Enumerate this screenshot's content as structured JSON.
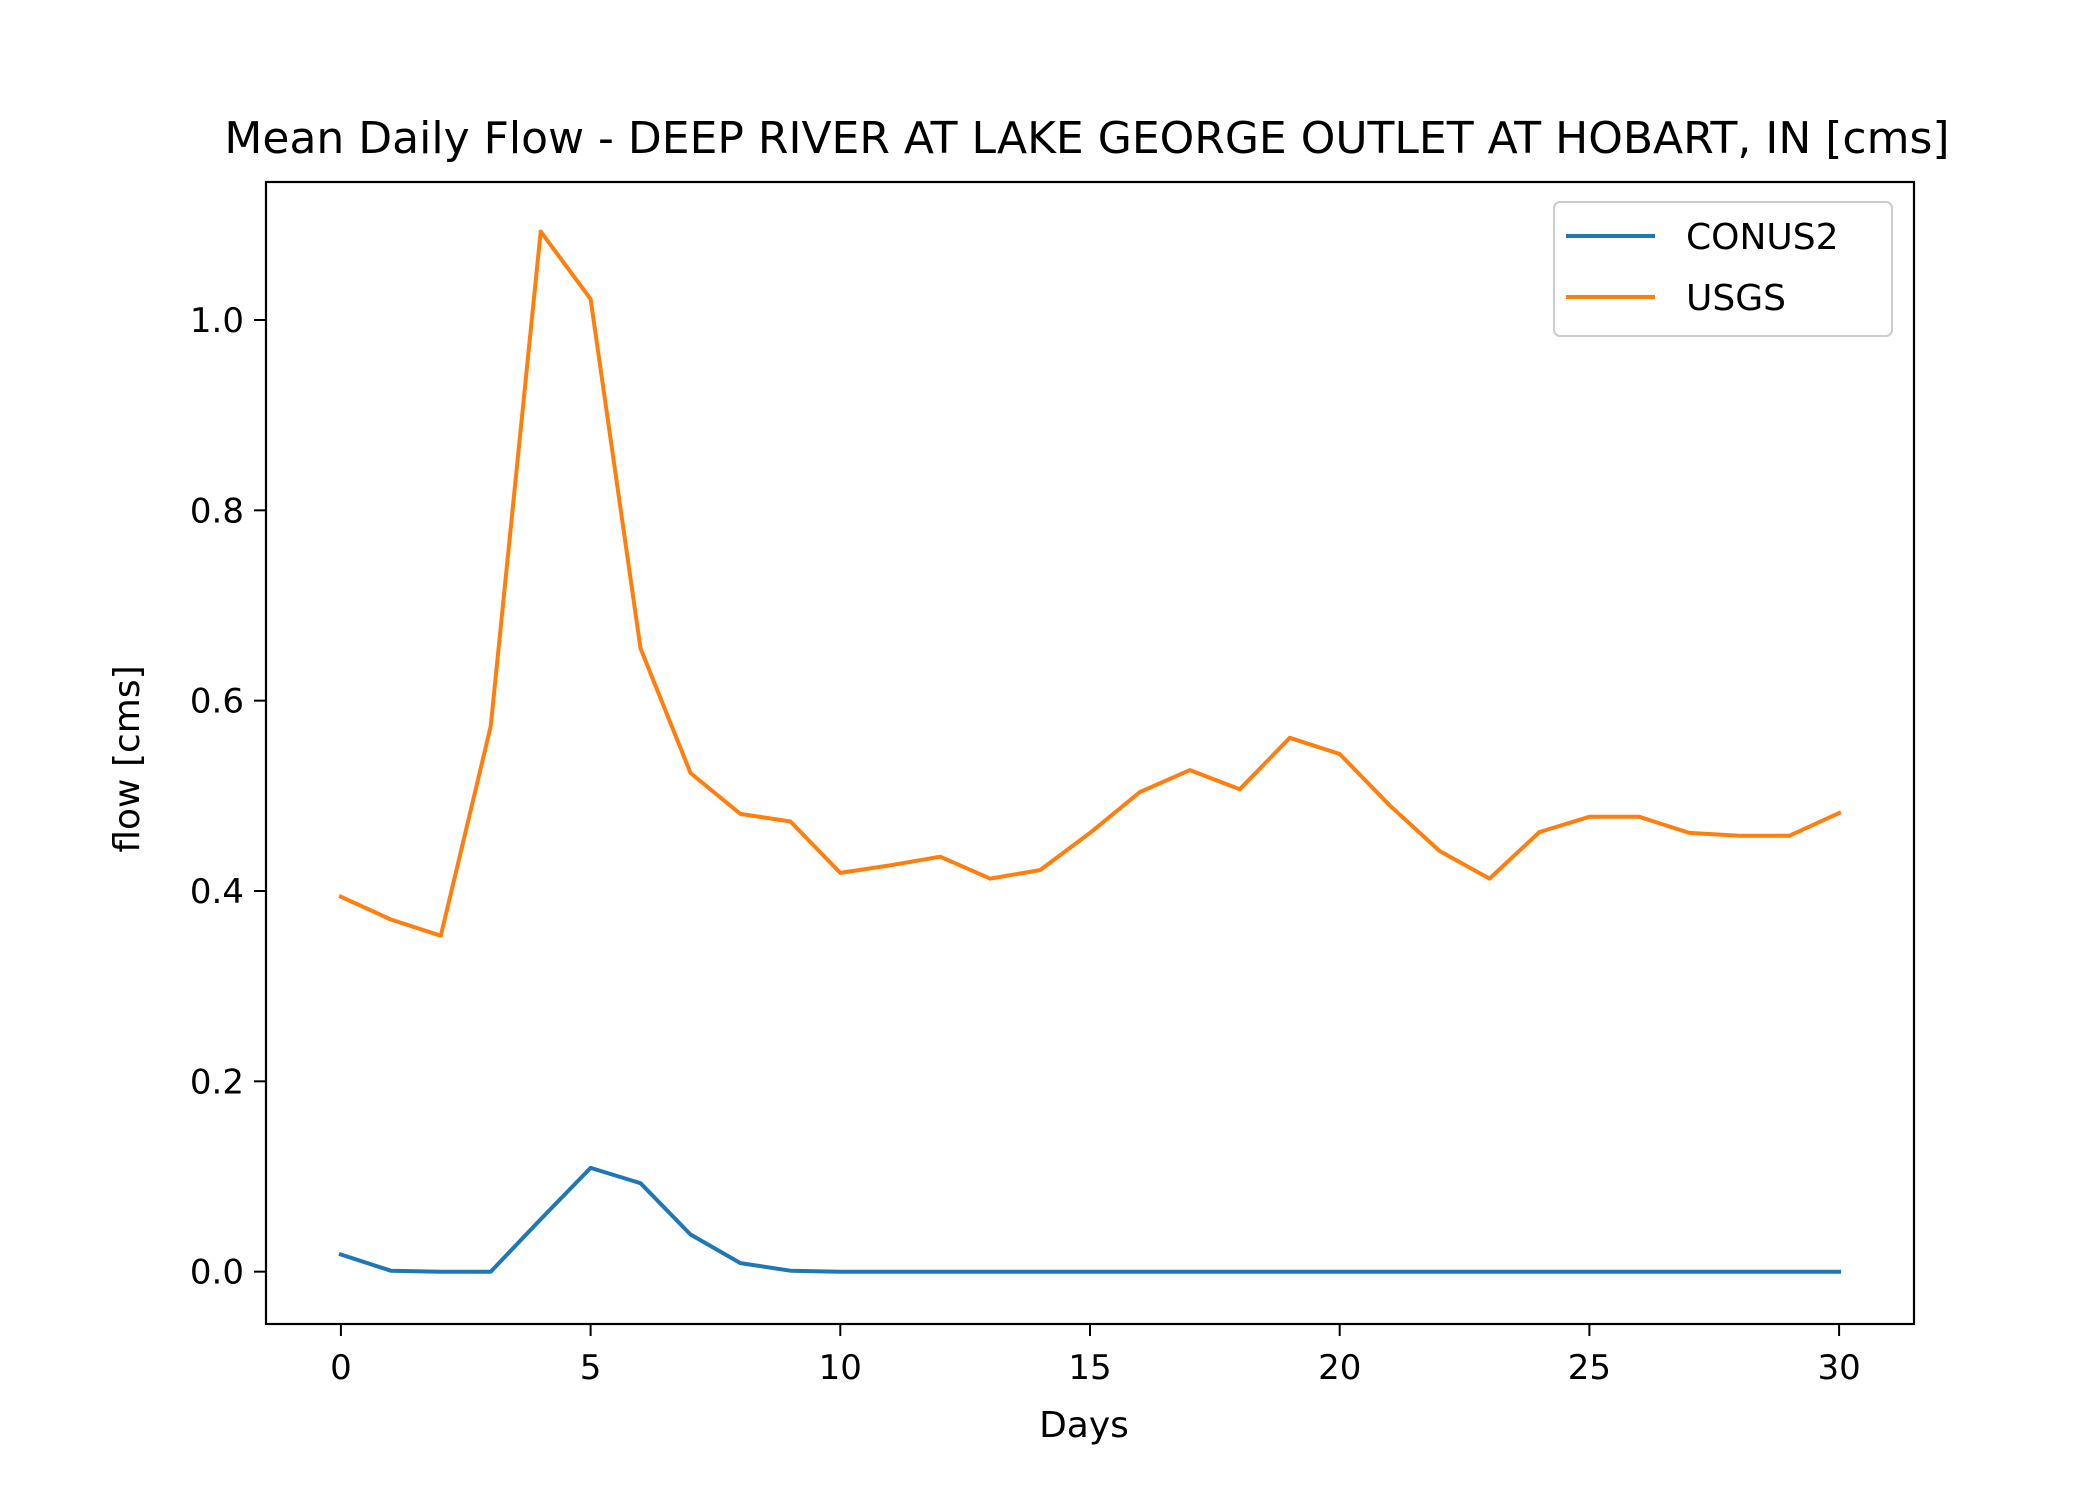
{
  "chart_data": {
    "type": "line",
    "title": "Mean Daily Flow - DEEP RIVER AT LAKE GEORGE OUTLET AT HOBART, IN [cms]",
    "xlabel": "Days",
    "ylabel": "flow [cms]",
    "xlim": [
      -1.5,
      31.5
    ],
    "ylim": [
      -0.055,
      1.145
    ],
    "xticks": [
      0,
      5,
      10,
      15,
      20,
      25,
      30
    ],
    "yticks": [
      0.0,
      0.2,
      0.4,
      0.6,
      0.8,
      1.0
    ],
    "xtick_labels": [
      "0",
      "5",
      "10",
      "15",
      "20",
      "25",
      "30"
    ],
    "ytick_labels": [
      "0.0",
      "0.2",
      "0.4",
      "0.6",
      "0.8",
      "1.0"
    ],
    "grid": false,
    "legend_position": "top-right",
    "x": [
      0,
      1,
      2,
      3,
      4,
      5,
      6,
      7,
      8,
      9,
      10,
      11,
      12,
      13,
      14,
      15,
      16,
      17,
      18,
      19,
      20,
      21,
      22,
      23,
      24,
      25,
      26,
      27,
      28,
      29,
      30
    ],
    "series": [
      {
        "name": "CONUS2",
        "color": "#1f77b4",
        "values": [
          0.018,
          0.001,
          0.0,
          0.0,
          0.055,
          0.109,
          0.093,
          0.039,
          0.009,
          0.001,
          0.0,
          0.0,
          0.0,
          0.0,
          0.0,
          0.0,
          0.0,
          0.0,
          0.0,
          0.0,
          0.0,
          0.0,
          0.0,
          0.0,
          0.0,
          0.0,
          0.0,
          0.0,
          0.0,
          0.0,
          0.0
        ]
      },
      {
        "name": "USGS",
        "color": "#ff7f0e",
        "values": [
          0.394,
          0.37,
          0.353,
          0.573,
          1.093,
          1.022,
          0.655,
          0.524,
          0.481,
          0.473,
          0.419,
          0.427,
          0.436,
          0.413,
          0.422,
          0.461,
          0.504,
          0.527,
          0.507,
          0.561,
          0.544,
          0.49,
          0.442,
          0.413,
          0.462,
          0.478,
          0.478,
          0.461,
          0.458,
          0.458,
          0.482
        ]
      }
    ]
  }
}
